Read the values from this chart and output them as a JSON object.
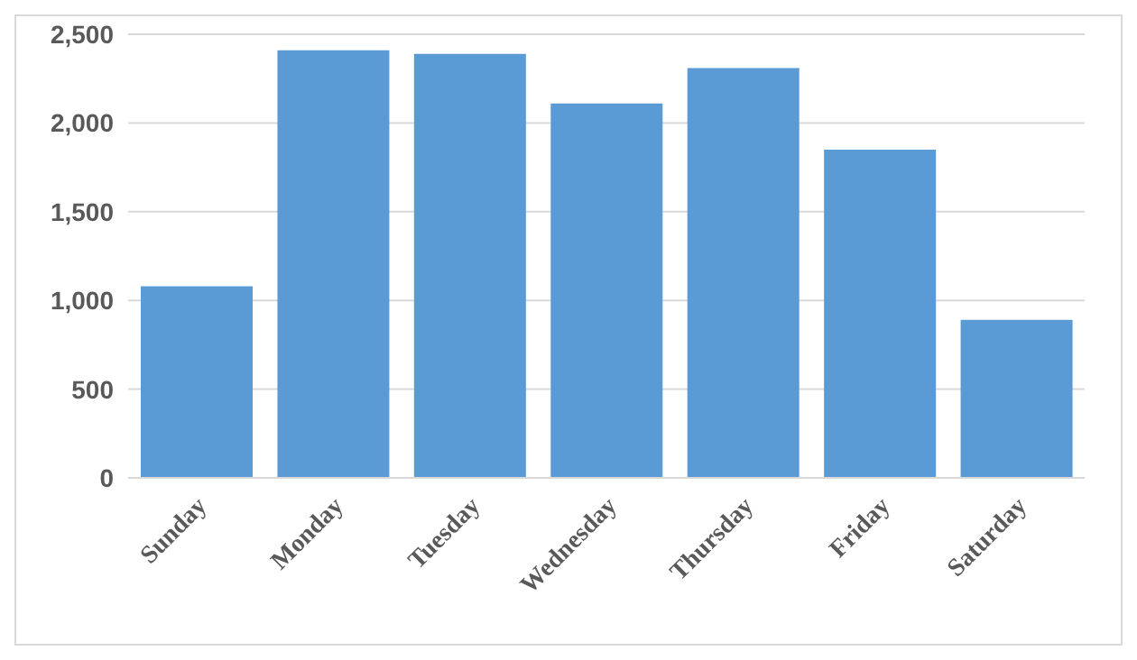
{
  "chart_data": {
    "type": "bar",
    "categories": [
      "Sunday",
      "Monday",
      "Tuesday",
      "Wednesday",
      "Thursday",
      "Friday",
      "Saturday"
    ],
    "values": [
      1080,
      2410,
      2390,
      2110,
      2310,
      1850,
      890
    ],
    "color": "#5b9bd5",
    "ylim": [
      0,
      2500
    ],
    "yticks": [
      0,
      500,
      {
        "value": 1000,
        "label": "1,000"
      },
      {
        "value": 1500,
        "label": "1,500"
      },
      {
        "value": 2000,
        "label": "2,000"
      },
      {
        "value": 2500,
        "label": "2,500"
      }
    ],
    "grid": "y",
    "legend": false
  }
}
